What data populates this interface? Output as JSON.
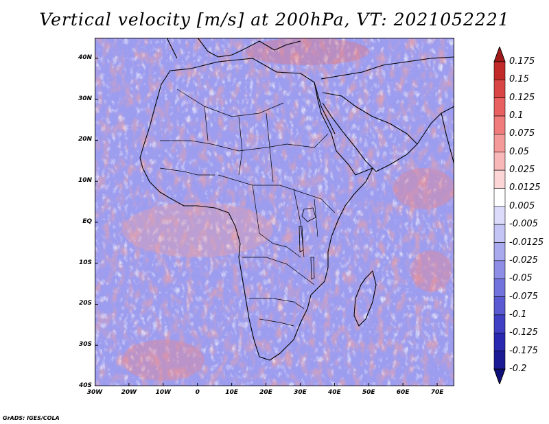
{
  "title": "Vertical velocity [m/s] at 200hPa, VT: 2021052221",
  "credit": "GrADS: IGES/COLA",
  "map": {
    "lon_range": [
      -30,
      75
    ],
    "lat_range": [
      -40,
      45
    ],
    "lat_labels": [
      "40N",
      "30N",
      "20N",
      "10N",
      "EQ",
      "10S",
      "20S",
      "30S",
      "40S"
    ],
    "lat_values": [
      40,
      30,
      20,
      10,
      0,
      -10,
      -20,
      -30,
      -40
    ],
    "lon_labels": [
      "30W",
      "20W",
      "10W",
      "0",
      "10E",
      "20E",
      "30E",
      "40E",
      "50E",
      "60E",
      "70E"
    ],
    "lon_values": [
      -30,
      -20,
      -10,
      0,
      10,
      20,
      30,
      40,
      50,
      60,
      70
    ]
  },
  "colorbar": {
    "levels": [
      "0.175",
      "0.15",
      "0.125",
      "0.1",
      "0.075",
      "0.05",
      "0.025",
      "0.0125",
      "0.005",
      "-0.005",
      "-0.0125",
      "-0.025",
      "-0.05",
      "-0.075",
      "-0.1",
      "-0.125",
      "-0.175",
      "-0.2"
    ],
    "colors": [
      "#a01a1a",
      "#c22a2a",
      "#d94545",
      "#e86060",
      "#f07c7c",
      "#f59a9a",
      "#f9b8b8",
      "#fcd6d6",
      "#ffffff",
      "#dcdcfa",
      "#c4c4f5",
      "#a9a9ee",
      "#8e8ee6",
      "#7373dd",
      "#5a5ad2",
      "#4040c4",
      "#2828b0",
      "#1a1a95",
      "#10107a"
    ]
  }
}
